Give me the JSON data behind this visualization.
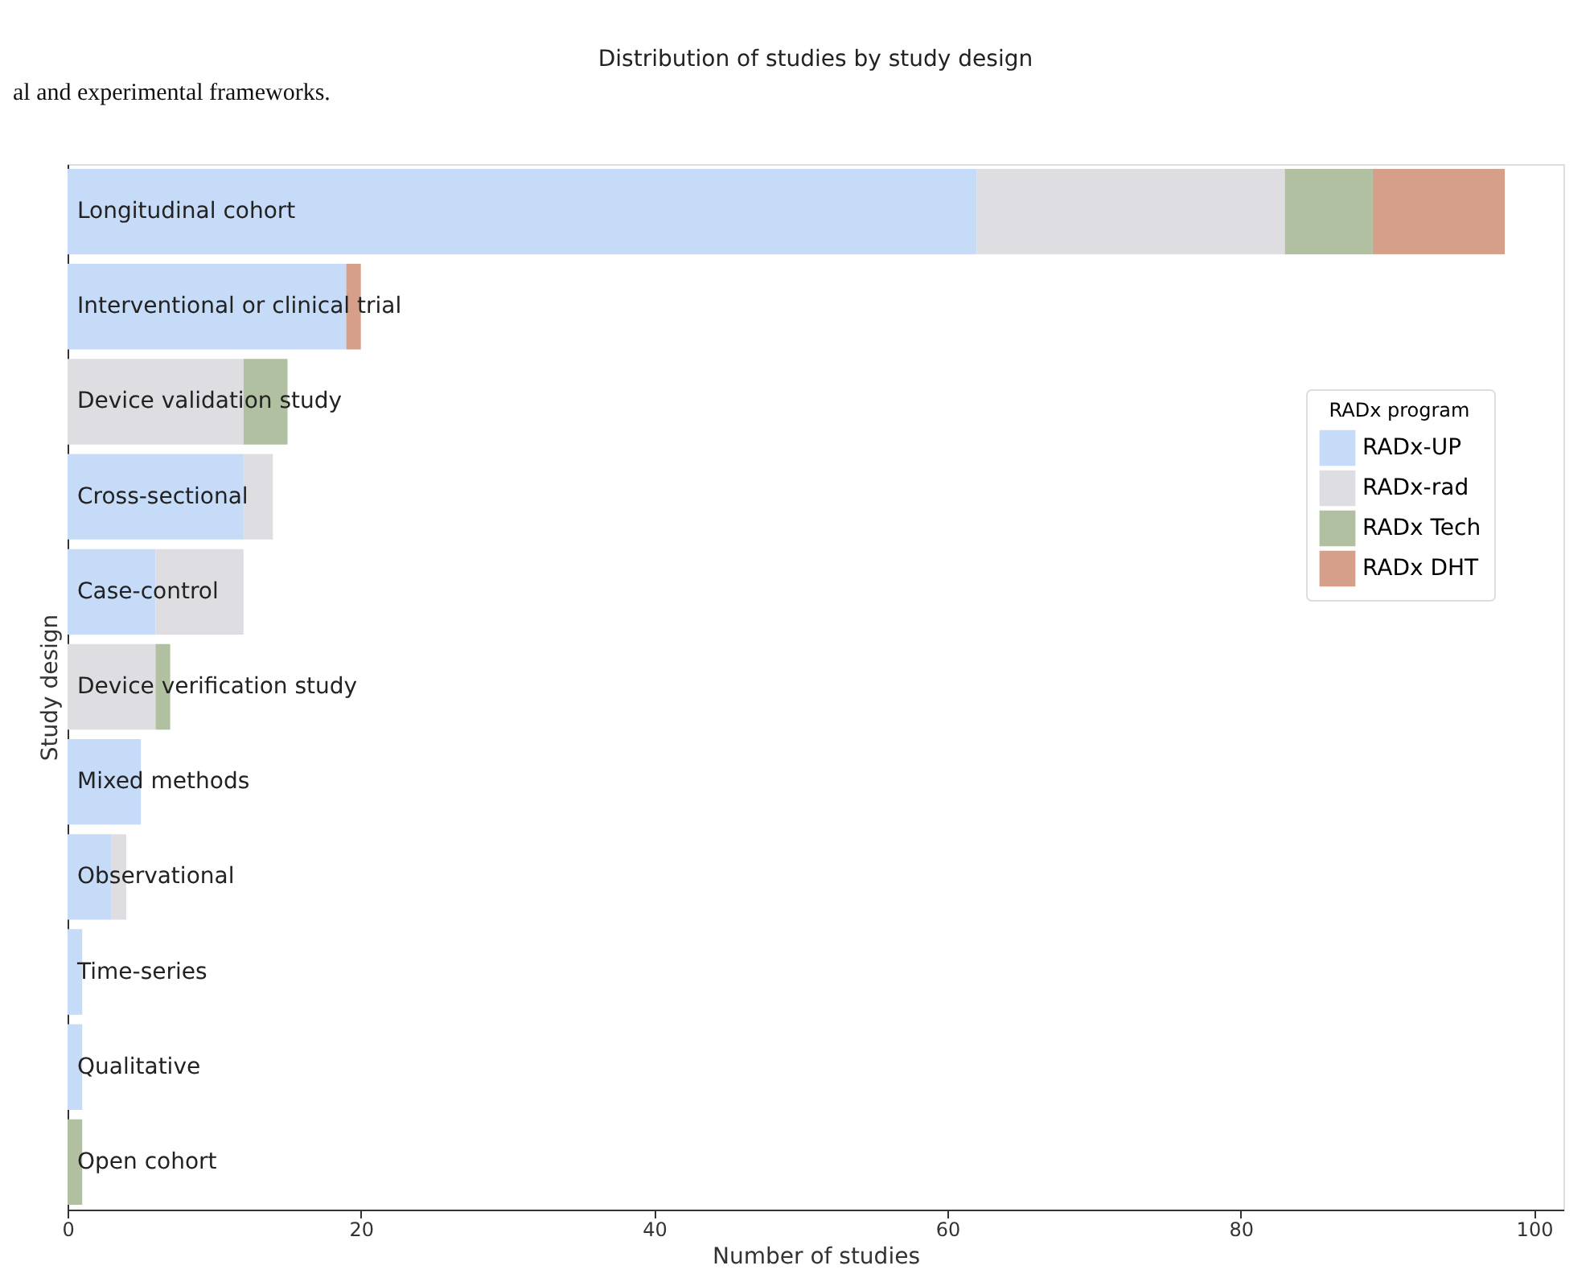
{
  "chart_data": {
    "type": "bar",
    "orientation": "horizontal",
    "stacked": true,
    "title": "Distribution of studies by study design",
    "xlabel": "Number of studies",
    "ylabel": "Study design",
    "legend_title": "RADx program",
    "annotations": [
      "al and experimental frameworks."
    ],
    "categories": [
      "Longitudinal cohort",
      "Interventional or clinical trial",
      "Device validation study",
      "Cross-sectional",
      "Case-control",
      "Device verification study",
      "Mixed methods",
      "Observational",
      "Time-series",
      "Qualitative",
      "Open cohort"
    ],
    "series": [
      {
        "name": "RADx-UP",
        "color": "#c5dbf8",
        "values": [
          62,
          19,
          0,
          12,
          6,
          0,
          5,
          3,
          1,
          1,
          0
        ]
      },
      {
        "name": "RADx-rad",
        "color": "#dedde2",
        "values": [
          21,
          0,
          12,
          2,
          6,
          6,
          0,
          1,
          0,
          0,
          0
        ]
      },
      {
        "name": "RADx Tech",
        "color": "#b1c0a0",
        "values": [
          6,
          0,
          3,
          0,
          0,
          1,
          0,
          0,
          0,
          0,
          1
        ]
      },
      {
        "name": "RADx DHT",
        "color": "#d59f8a",
        "values": [
          9,
          1,
          0,
          0,
          0,
          0,
          0,
          0,
          0,
          0,
          0
        ]
      }
    ],
    "xlim": [
      0,
      102
    ],
    "xticks": [
      0,
      20,
      40,
      60,
      80,
      100
    ],
    "grid": false,
    "legend": "top right"
  }
}
